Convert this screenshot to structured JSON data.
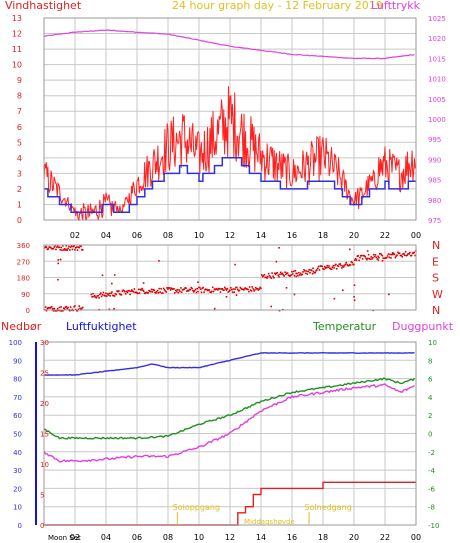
{
  "header": {
    "wind_label": "Vindhastighet",
    "title": "24 hour graph day - 12 February 2019",
    "pressure_label": "Lufttrykk"
  },
  "middle": {
    "rain_label": "Nedbør",
    "humidity_label": "Luftfuktighet",
    "temperature_label": "Temperatur",
    "dewpoint_label": "Duggpunkt"
  },
  "annotations": {
    "moon": "Moon Set",
    "sunrise": "Soloppgang",
    "sunset": "Solnedgang",
    "mid": "Middagshøyde"
  },
  "colors": {
    "wind_axis": "#e02020",
    "pressure": "#e040e0",
    "gust": "#ff2020",
    "wind_avg": "#3030e0",
    "dir_points": "#dd0000",
    "humidity": "#3030e0",
    "temperature": "#209020",
    "dewpoint": "#e040e0",
    "rain": "#dd2020",
    "rain_axis": "#1010e0",
    "label_yellow": "#e0c020",
    "grid": "#c8c8c8"
  },
  "chart_data": [
    {
      "type": "line",
      "title": "24 hour graph day - 12 February 2019",
      "x_ticks": [
        "02",
        "04",
        "06",
        "08",
        "10",
        "12",
        "14",
        "16",
        "18",
        "20",
        "22",
        "00"
      ],
      "left_axis": {
        "label": "Vindhastighet",
        "ticks": [
          0,
          1,
          2,
          3,
          4,
          5,
          6,
          7,
          8,
          9,
          10,
          11,
          12,
          13
        ],
        "ylim": [
          0,
          13
        ]
      },
      "right_axis": {
        "label": "Lufttrykk",
        "ticks": [
          975,
          980,
          985,
          990,
          995,
          1000,
          1005,
          1010,
          1015,
          1020,
          1025
        ],
        "ylim": [
          975,
          1025
        ]
      },
      "series": [
        {
          "name": "Vindhastighet",
          "x": [
            0,
            1,
            2,
            3,
            4,
            5,
            6,
            7,
            8,
            9,
            10,
            11,
            12,
            13,
            14,
            15,
            16,
            17,
            18,
            19,
            20,
            21,
            22,
            23,
            24
          ],
          "values": [
            2.5,
            1.5,
            0.5,
            0.5,
            1.2,
            0.5,
            2.0,
            3.0,
            4.0,
            4.5,
            3.5,
            4.5,
            5.5,
            4.5,
            3.5,
            3.0,
            2.5,
            3.0,
            3.5,
            2.5,
            1.0,
            2.5,
            3.0,
            2.5,
            3.5
          ]
        },
        {
          "name": "Lufttrykk",
          "x": [
            0,
            2,
            4,
            6,
            8,
            10,
            12,
            14,
            16,
            18,
            20,
            22,
            23,
            24
          ],
          "values": [
            1020.5,
            1021.5,
            1022.0,
            1021.5,
            1021.0,
            1019.5,
            1018.0,
            1017.0,
            1016.0,
            1015.5,
            1015.0,
            1015.0,
            1015.5,
            1016.0
          ]
        }
      ]
    },
    {
      "type": "scatter",
      "left_ticks": [
        0,
        90,
        180,
        270,
        360
      ],
      "right_ticks": [
        "N",
        "W",
        "S",
        "E",
        "N"
      ],
      "ylim": [
        0,
        360
      ],
      "segments": [
        {
          "x": [
            0,
            2.5
          ],
          "values": [
            350,
            350
          ]
        },
        {
          "x": [
            0,
            2.5
          ],
          "values": [
            10,
            15
          ]
        },
        {
          "x": [
            3,
            6
          ],
          "values": [
            80,
            110
          ]
        },
        {
          "x": [
            6,
            14
          ],
          "values": [
            110,
            120
          ]
        },
        {
          "x": [
            14,
            17.5
          ],
          "values": [
            190,
            220
          ]
        },
        {
          "x": [
            17.5,
            20
          ],
          "values": [
            230,
            260
          ]
        },
        {
          "x": [
            20,
            24
          ],
          "values": [
            290,
            320
          ]
        }
      ]
    },
    {
      "type": "line",
      "left_axis": {
        "label": "Luftfuktighet",
        "ticks": [
          0,
          10,
          20,
          30,
          40,
          50,
          60,
          70,
          80,
          90,
          100
        ],
        "ylim": [
          0,
          100
        ]
      },
      "rain_axis": {
        "label": "Nedbør",
        "ticks": [
          0,
          5,
          10,
          15,
          20,
          25,
          30
        ],
        "ylim": [
          0,
          30
        ]
      },
      "right_axis": {
        "label": "Temperatur",
        "ticks": [
          -10,
          -8,
          -6,
          -4,
          -2,
          0,
          2,
          4,
          6,
          8,
          10
        ],
        "ylim": [
          -10,
          10
        ]
      },
      "x_ticks": [
        "02",
        "04",
        "06",
        "08",
        "10",
        "12",
        "14",
        "16",
        "18",
        "20",
        "22",
        "00"
      ],
      "series": [
        {
          "name": "Luftfuktighet",
          "x": [
            0,
            2,
            4,
            6,
            7,
            8,
            10,
            12,
            13,
            14,
            16,
            18,
            20,
            22,
            24
          ],
          "values": [
            82,
            82,
            84,
            86,
            88,
            86,
            86,
            90,
            92,
            94,
            94,
            94,
            94,
            94,
            94
          ]
        },
        {
          "name": "Temperatur",
          "x": [
            0,
            1,
            2,
            4,
            6,
            8,
            10,
            12,
            14,
            16,
            18,
            20,
            22,
            23,
            24
          ],
          "values": [
            0.5,
            -0.5,
            -0.5,
            -0.5,
            -0.5,
            -0.3,
            1.0,
            2.0,
            3.5,
            4.5,
            5.0,
            5.5,
            6.0,
            5.5,
            6.0
          ]
        },
        {
          "name": "Duggpunkt",
          "x": [
            0,
            1,
            2,
            4,
            6,
            8,
            10,
            12,
            14,
            16,
            18,
            20,
            22,
            23,
            24
          ],
          "values": [
            -2.0,
            -3.0,
            -3.0,
            -2.8,
            -2.5,
            -2.5,
            -1.5,
            0.0,
            2.5,
            4.0,
            4.5,
            5.0,
            5.3,
            4.5,
            5.3
          ]
        },
        {
          "name": "Nedbør",
          "x": [
            0,
            12,
            12.5,
            13,
            13.5,
            14,
            16,
            17,
            18,
            20,
            22,
            24
          ],
          "values": [
            0,
            0,
            2,
            3,
            5,
            6,
            6,
            6,
            7,
            7,
            7,
            7
          ]
        }
      ]
    }
  ]
}
